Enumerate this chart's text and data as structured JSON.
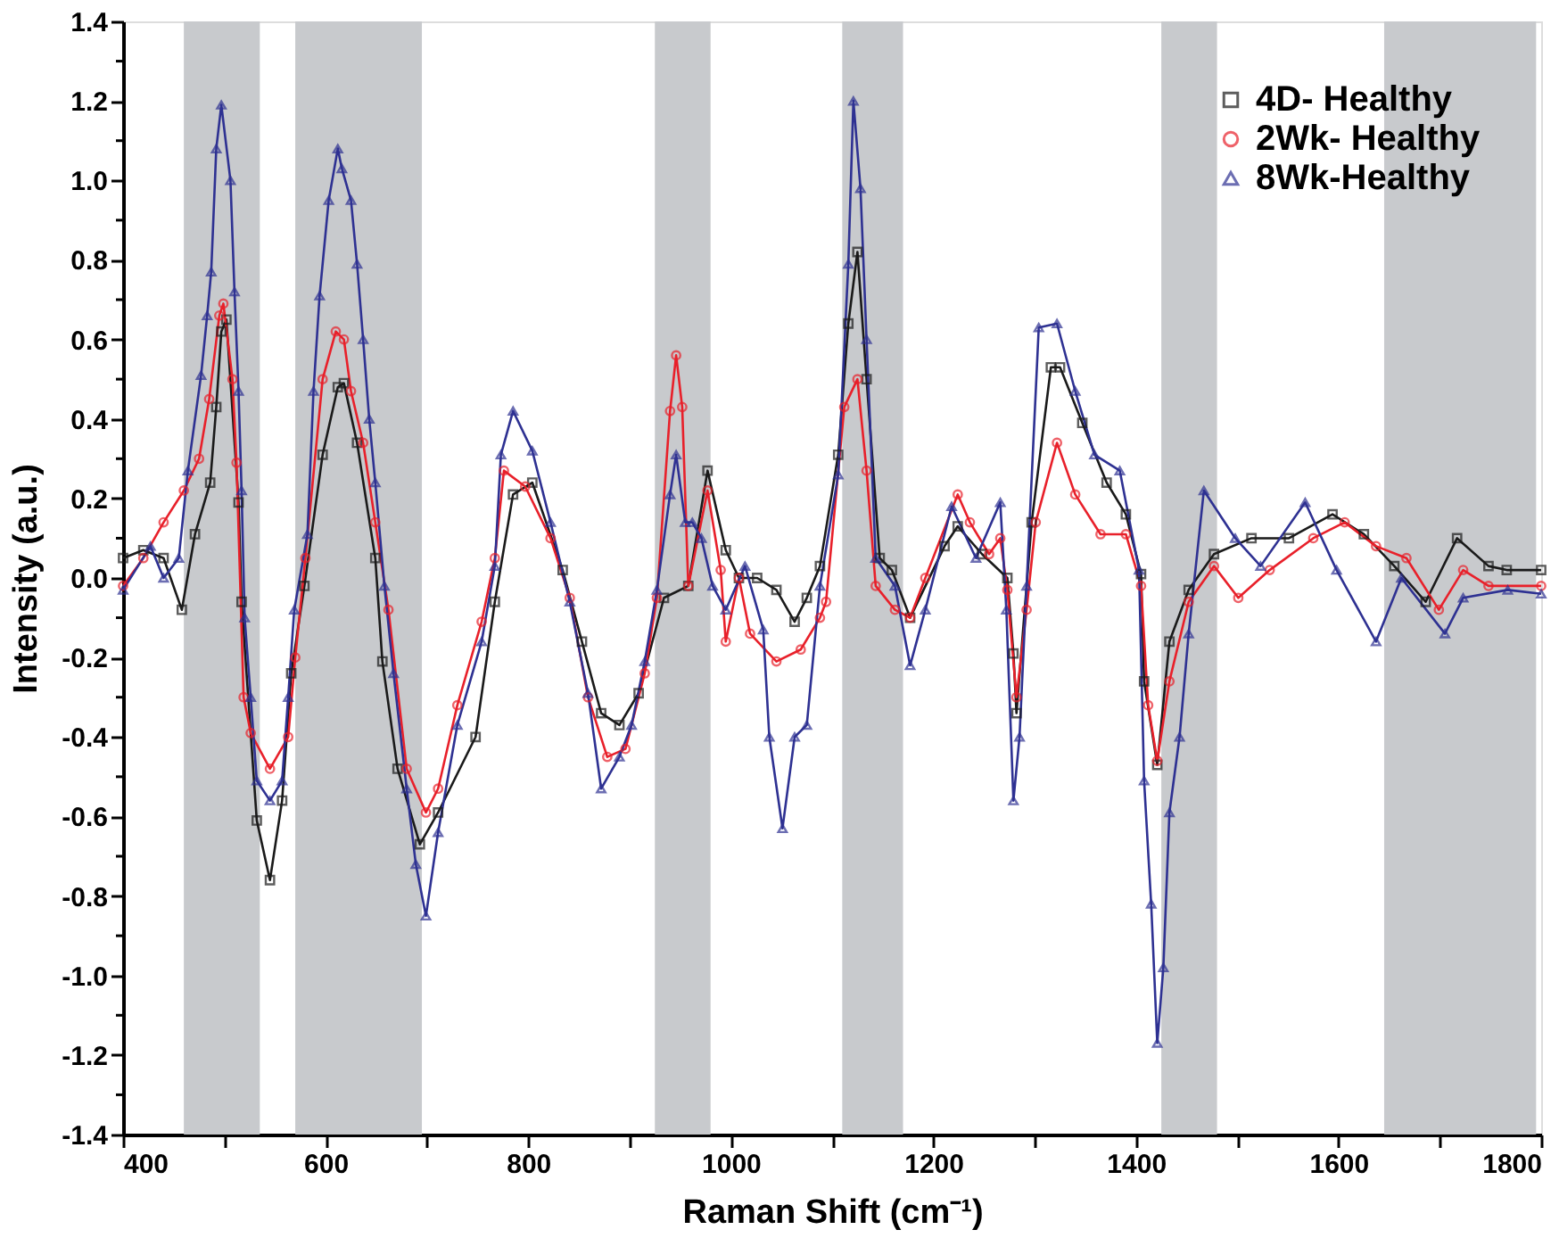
{
  "chart_data": {
    "type": "line",
    "xlabel": "Raman Shift (cm⁻¹)",
    "ylabel": "Intensity (a.u.)",
    "xlim": [
      400,
      1800
    ],
    "ylim": [
      -1.4,
      1.4
    ],
    "xticks": [
      400,
      {
        "value": 500,
        "label": null
      },
      600,
      {
        "value": 700,
        "label": null
      },
      800,
      {
        "value": 900,
        "label": null
      },
      1000,
      {
        "value": 1100,
        "label": null
      },
      1200,
      {
        "value": 1300,
        "label": null
      },
      1400,
      {
        "value": 1500,
        "label": null
      },
      1600,
      {
        "value": 1700,
        "label": null
      },
      1800
    ],
    "yticks": [
      {
        "value": -1.4,
        "label": "-1.4"
      },
      {
        "value": -1.3,
        "label": null
      },
      {
        "value": -1.2,
        "label": "-1.2"
      },
      {
        "value": -1.1,
        "label": null
      },
      {
        "value": -1.0,
        "label": "-1.0"
      },
      {
        "value": -0.9,
        "label": null
      },
      {
        "value": -0.8,
        "label": "-0.8"
      },
      {
        "value": -0.7,
        "label": null
      },
      {
        "value": -0.6,
        "label": "-0.6"
      },
      {
        "value": -0.5,
        "label": null
      },
      {
        "value": -0.4,
        "label": "-0.4"
      },
      {
        "value": -0.3,
        "label": null
      },
      {
        "value": -0.2,
        "label": "-0.2"
      },
      {
        "value": -0.1,
        "label": null
      },
      {
        "value": 0,
        "label": "0.0"
      },
      {
        "value": 0.1,
        "label": null
      },
      {
        "value": 0.2,
        "label": "0.2"
      },
      {
        "value": 0.3,
        "label": null
      },
      {
        "value": 0.4,
        "label": "0.4"
      },
      {
        "value": 0.5,
        "label": null
      },
      {
        "value": 0.6,
        "label": "0.6"
      },
      {
        "value": 0.7,
        "label": null
      },
      {
        "value": 0.8,
        "label": "0.8"
      },
      {
        "value": 0.9,
        "label": null
      },
      {
        "value": 1.0,
        "label": "1.0"
      },
      {
        "value": 1.1,
        "label": null
      },
      {
        "value": 1.2,
        "label": "1.2"
      },
      {
        "value": 1.3,
        "label": null
      },
      {
        "value": 1.4,
        "label": "1.4"
      }
    ],
    "grid": false,
    "legend": "top right",
    "line_style": "solid",
    "bands": [
      {
        "axis": "x",
        "from": 460,
        "to": 535,
        "color": "#c8cacd"
      },
      {
        "axis": "x",
        "from": 570,
        "to": 695,
        "color": "#c8cacd"
      },
      {
        "axis": "x",
        "from": 925,
        "to": 980,
        "color": "#c8cacd"
      },
      {
        "axis": "x",
        "from": 1110,
        "to": 1170,
        "color": "#c8cacd"
      },
      {
        "axis": "x",
        "from": 1425,
        "to": 1480,
        "color": "#c8cacd"
      },
      {
        "axis": "x",
        "from": 1645,
        "to": 1795,
        "color": "#c8cacd"
      }
    ],
    "series": [
      {
        "name": "4D- Healthy",
        "color": "#1a1a1a",
        "marker": "square",
        "x": [
          400,
          420,
          440,
          458,
          471,
          486,
          492,
          497,
          502,
          514,
          517,
          532,
          545,
          557,
          566,
          579,
          597,
          612,
          618,
          631,
          649,
          656,
          671,
          693,
          711,
          748,
          767,
          785,
          804,
          834,
          853,
          872,
          890,
          909,
          934,
          958,
          977,
          995,
          1008,
          1026,
          1045,
          1063,
          1075,
          1088,
          1106,
          1116,
          1125,
          1134,
          1147,
          1159,
          1177,
          1211,
          1224,
          1248,
          1273,
          1279,
          1282,
          1297,
          1316,
          1325,
          1347,
          1371,
          1390,
          1405,
          1408,
          1421,
          1433,
          1452,
          1477,
          1514,
          1551,
          1594,
          1625,
          1655,
          1686,
          1717,
          1748,
          1766,
          1800
        ],
        "values": [
          0.05,
          0.07,
          0.05,
          -0.08,
          0.11,
          0.24,
          0.43,
          0.62,
          0.65,
          0.19,
          -0.06,
          -0.61,
          -0.76,
          -0.56,
          -0.24,
          -0.02,
          0.31,
          0.48,
          0.49,
          0.34,
          0.05,
          -0.21,
          -0.48,
          -0.67,
          -0.59,
          -0.4,
          -0.06,
          0.21,
          0.24,
          0.02,
          -0.16,
          -0.34,
          -0.37,
          -0.29,
          -0.05,
          -0.02,
          0.27,
          0.07,
          0.0,
          0.0,
          -0.03,
          -0.11,
          -0.05,
          0.03,
          0.31,
          0.64,
          0.82,
          0.5,
          0.05,
          0.02,
          -0.1,
          0.08,
          0.13,
          0.06,
          0.0,
          -0.19,
          -0.34,
          0.14,
          0.53,
          0.53,
          0.39,
          0.24,
          0.16,
          0.01,
          -0.26,
          -0.47,
          -0.16,
          -0.03,
          0.06,
          0.1,
          0.1,
          0.16,
          0.11,
          0.03,
          -0.06,
          0.1,
          0.03,
          0.02,
          0.02
        ]
      },
      {
        "name": "2Wk- Healthy",
        "color": "#e8202a",
        "marker": "circle",
        "x": [
          400,
          420,
          440,
          460,
          475,
          485,
          495,
          499,
          508,
          512,
          519,
          526,
          545,
          563,
          570,
          580,
          597,
          610,
          618,
          625,
          637,
          649,
          662,
          680,
          699,
          711,
          730,
          754,
          767,
          776,
          797,
          822,
          841,
          859,
          878,
          896,
          915,
          927,
          940,
          946,
          952,
          958,
          977,
          990,
          995,
          1008,
          1019,
          1045,
          1069,
          1088,
          1094,
          1112,
          1125,
          1134,
          1143,
          1162,
          1177,
          1192,
          1224,
          1236,
          1255,
          1266,
          1273,
          1282,
          1292,
          1301,
          1322,
          1340,
          1365,
          1390,
          1405,
          1412,
          1421,
          1433,
          1452,
          1477,
          1501,
          1532,
          1575,
          1606,
          1637,
          1667,
          1699,
          1723,
          1748,
          1800
        ],
        "values": [
          -0.02,
          0.05,
          0.14,
          0.22,
          0.3,
          0.45,
          0.66,
          0.69,
          0.5,
          0.29,
          -0.3,
          -0.39,
          -0.48,
          -0.4,
          -0.2,
          0.05,
          0.5,
          0.62,
          0.6,
          0.47,
          0.34,
          0.14,
          -0.08,
          -0.48,
          -0.59,
          -0.53,
          -0.32,
          -0.11,
          0.05,
          0.27,
          0.23,
          0.1,
          -0.05,
          -0.3,
          -0.45,
          -0.43,
          -0.24,
          -0.05,
          0.42,
          0.56,
          0.43,
          -0.02,
          0.22,
          0.02,
          -0.16,
          0.0,
          -0.14,
          -0.21,
          -0.18,
          -0.1,
          -0.06,
          0.43,
          0.5,
          0.27,
          -0.02,
          -0.08,
          -0.1,
          0.0,
          0.21,
          0.14,
          0.06,
          0.1,
          -0.03,
          -0.3,
          -0.08,
          0.14,
          0.34,
          0.21,
          0.11,
          0.11,
          -0.02,
          -0.32,
          -0.46,
          -0.26,
          -0.06,
          0.03,
          -0.05,
          0.02,
          0.1,
          0.14,
          0.08,
          0.05,
          -0.08,
          0.02,
          -0.02,
          -0.02
        ]
      },
      {
        "name": "8Wk-Healthy",
        "color": "#2e3192",
        "marker": "triangle",
        "x": [
          400,
          427,
          440,
          455,
          464,
          477,
          483,
          487,
          492,
          497,
          506,
          510,
          514,
          517,
          520,
          526,
          532,
          545,
          557,
          563,
          569,
          582,
          588,
          594,
          603,
          612,
          616,
          625,
          631,
          637,
          643,
          649,
          658,
          667,
          680,
          689,
          699,
          711,
          730,
          754,
          767,
          773,
          785,
          804,
          822,
          841,
          859,
          872,
          890,
          902,
          915,
          927,
          940,
          946,
          955,
          962,
          971,
          982,
          995,
          1014,
          1032,
          1038,
          1051,
          1063,
          1075,
          1088,
          1106,
          1116,
          1121,
          1128,
          1134,
          1143,
          1162,
          1177,
          1192,
          1218,
          1242,
          1266,
          1272,
          1279,
          1285,
          1292,
          1304,
          1322,
          1340,
          1359,
          1384,
          1403,
          1408,
          1415,
          1421,
          1427,
          1433,
          1443,
          1452,
          1467,
          1498,
          1523,
          1567,
          1598,
          1637,
          1662,
          1705,
          1723,
          1767,
          1800
        ],
        "values": [
          -0.03,
          0.08,
          0.0,
          0.05,
          0.27,
          0.51,
          0.66,
          0.77,
          1.08,
          1.19,
          1.0,
          0.72,
          0.47,
          0.22,
          -0.1,
          -0.3,
          -0.51,
          -0.56,
          -0.51,
          -0.3,
          -0.08,
          0.11,
          0.47,
          0.71,
          0.95,
          1.08,
          1.03,
          0.95,
          0.79,
          0.6,
          0.4,
          0.24,
          -0.02,
          -0.24,
          -0.53,
          -0.72,
          -0.85,
          -0.64,
          -0.37,
          -0.16,
          0.03,
          0.31,
          0.42,
          0.32,
          0.14,
          -0.06,
          -0.29,
          -0.53,
          -0.45,
          -0.37,
          -0.21,
          -0.03,
          0.21,
          0.31,
          0.14,
          0.14,
          0.1,
          -0.02,
          -0.08,
          0.03,
          -0.13,
          -0.4,
          -0.63,
          -0.4,
          -0.37,
          -0.02,
          0.26,
          0.79,
          1.2,
          0.98,
          0.6,
          0.05,
          -0.02,
          -0.22,
          -0.08,
          0.18,
          0.05,
          0.19,
          -0.08,
          -0.56,
          -0.4,
          -0.02,
          0.63,
          0.64,
          0.47,
          0.31,
          0.27,
          0.02,
          -0.51,
          -0.82,
          -1.17,
          -0.98,
          -0.59,
          -0.4,
          -0.14,
          0.22,
          0.1,
          0.03,
          0.19,
          0.02,
          -0.16,
          0.0,
          -0.14,
          -0.05,
          -0.03,
          -0.04
        ]
      }
    ]
  }
}
